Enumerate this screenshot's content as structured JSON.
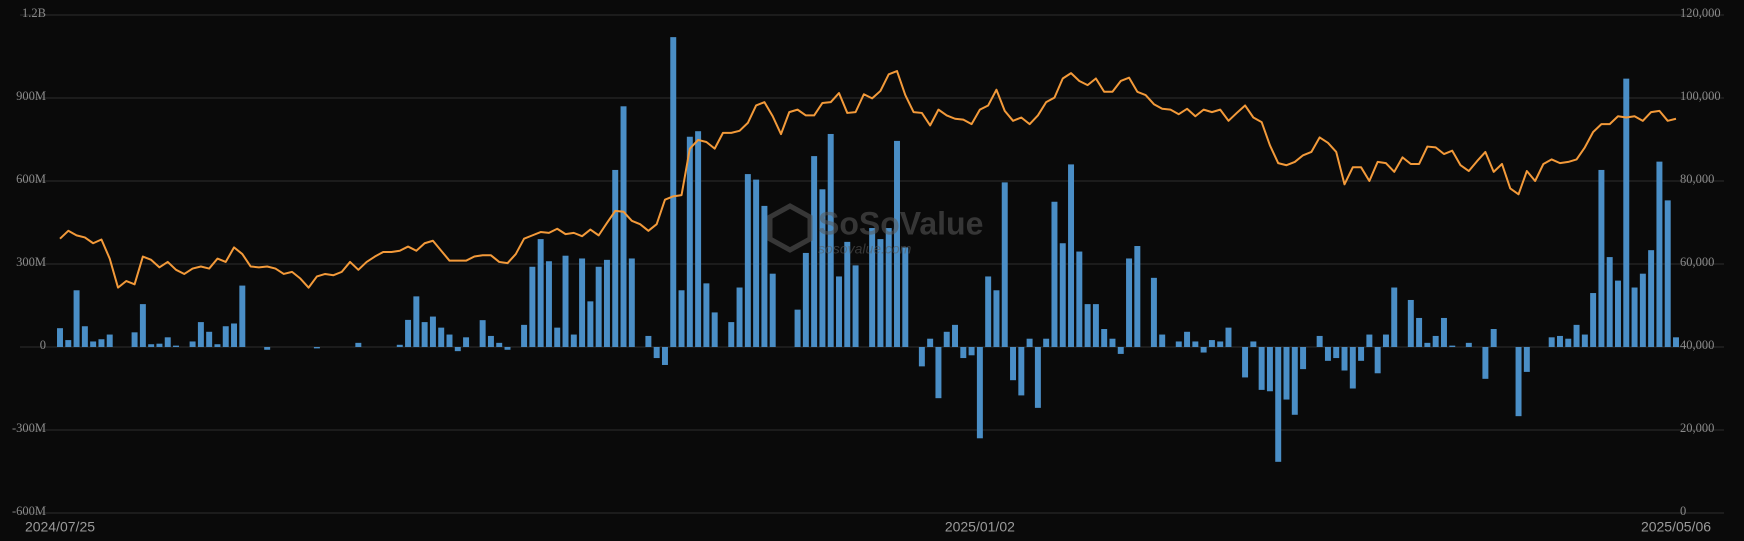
{
  "chart_data": {
    "type": "bar",
    "watermark": "SoSoValue",
    "watermark_url": "sosovalue.com",
    "categories": [
      "2024/07/25",
      null,
      null,
      null,
      null,
      null,
      null,
      null,
      null,
      null,
      null,
      null,
      null,
      null,
      null,
      null,
      null,
      null,
      null,
      null,
      null,
      null,
      null,
      null,
      null,
      null,
      null,
      null,
      null,
      null,
      null,
      null,
      null,
      null,
      null,
      null,
      null,
      null,
      null,
      null,
      null,
      null,
      null,
      null,
      null,
      null,
      null,
      null,
      null,
      null,
      null,
      null,
      null,
      null,
      null,
      null,
      null,
      null,
      null,
      null,
      null,
      null,
      null,
      null,
      null,
      null,
      null,
      null,
      null,
      null,
      null,
      null,
      null,
      null,
      null,
      null,
      null,
      null,
      null,
      null,
      null,
      null,
      null,
      null,
      null,
      null,
      null,
      null,
      null,
      null,
      null,
      null,
      null,
      null,
      null,
      null,
      null,
      null,
      null,
      null,
      null,
      null,
      null,
      null,
      null,
      null,
      null,
      null,
      null,
      null,
      null,
      "2025/01/02",
      null,
      null,
      null,
      null,
      null,
      null,
      null,
      null,
      null,
      null,
      null,
      null,
      null,
      null,
      null,
      null,
      null,
      null,
      null,
      null,
      null,
      null,
      null,
      null,
      null,
      null,
      null,
      null,
      null,
      null,
      null,
      null,
      null,
      null,
      null,
      null,
      null,
      null,
      null,
      null,
      null,
      null,
      null,
      null,
      null,
      null,
      null,
      null,
      null,
      null,
      null,
      null,
      null,
      null,
      null,
      null,
      null,
      null,
      null,
      null,
      null,
      null,
      null,
      null,
      null,
      null,
      null,
      null,
      null,
      null,
      null,
      null,
      null,
      null,
      null,
      null,
      null,
      null,
      null,
      null,
      null,
      null,
      null,
      "2025/05/06"
    ],
    "series": [
      {
        "type": "bar",
        "axis": "y",
        "color": "#4a8ec6",
        "values": [
          68000000,
          25000000,
          205000000,
          75000000,
          20000000,
          28000000,
          45000000,
          0,
          0,
          53000000,
          155000000,
          10000000,
          12000000,
          35000000,
          5000000,
          0,
          20000000,
          90000000,
          55000000,
          10000000,
          75000000,
          85000000,
          222000000,
          0,
          0,
          -10000000,
          0,
          0,
          0,
          0,
          0,
          -5000000,
          0,
          0,
          0,
          0,
          15000000,
          0,
          0,
          0,
          0,
          8000000,
          98000000,
          183000000,
          90000000,
          110000000,
          70000000,
          45000000,
          -15000000,
          35000000,
          0,
          97000000,
          40000000,
          15000000,
          -10000000,
          0,
          80000000,
          290000000,
          390000000,
          310000000,
          70000000,
          330000000,
          45000000,
          320000000,
          165000000,
          290000000,
          315000000,
          640000000,
          870000000,
          320000000,
          0,
          40000000,
          -40000000,
          -65000000,
          1120000000,
          205000000,
          760000000,
          780000000,
          230000000,
          125000000,
          0,
          90000000,
          215000000,
          625000000,
          605000000,
          510000000,
          265000000,
          0,
          0,
          135000000,
          340000000,
          690000000,
          570000000,
          770000000,
          255000000,
          380000000,
          295000000,
          0,
          430000000,
          390000000,
          430000000,
          745000000,
          360000000,
          0,
          -70000000,
          30000000,
          -185000000,
          55000000,
          80000000,
          -40000000,
          -30000000,
          -330000000,
          255000000,
          205000000,
          595000000,
          -120000000,
          -175000000,
          30000000,
          -220000000,
          30000000,
          525000000,
          375000000,
          660000000,
          345000000,
          155000000,
          155000000,
          65000000,
          30000000,
          -25000000,
          320000000,
          365000000,
          0,
          250000000,
          45000000,
          0,
          20000000,
          55000000,
          20000000,
          -20000000,
          25000000,
          20000000,
          70000000,
          0,
          -110000000,
          20000000,
          -155000000,
          -160000000,
          -415000000,
          -190000000,
          -245000000,
          -80000000,
          0,
          40000000,
          -50000000,
          -40000000,
          -85000000,
          -150000000,
          -50000000,
          45000000,
          -95000000,
          45000000,
          215000000,
          0,
          170000000,
          105000000,
          15000000,
          40000000,
          105000000,
          5000000,
          0,
          15000000,
          0,
          -115000000,
          65000000,
          0,
          0,
          -250000000,
          -90000000,
          0,
          0,
          35000000,
          40000000,
          30000000,
          80000000,
          45000000,
          195000000,
          640000000,
          325000000,
          240000000,
          970000000,
          215000000,
          265000000,
          350000000,
          670000000,
          530000000,
          35000000
        ]
      },
      {
        "type": "line",
        "axis": "y2",
        "color": "#f39a3a",
        "values": [
          66100,
          68000,
          66900,
          66400,
          65000,
          65900,
          61300,
          54300,
          55900,
          55100,
          61800,
          61000,
          59200,
          60500,
          58600,
          57600,
          58900,
          59400,
          58900,
          61300,
          60500,
          64000,
          62400,
          59400,
          59200,
          59400,
          58900,
          57600,
          58100,
          56500,
          54300,
          57000,
          57600,
          57300,
          58100,
          60500,
          58600,
          60500,
          61800,
          62900,
          62900,
          63200,
          64200,
          63200,
          65000,
          65600,
          63200,
          60800,
          60800,
          60800,
          61800,
          62100,
          62100,
          60500,
          60200,
          62400,
          66100,
          66900,
          67700,
          67500,
          68500,
          67200,
          67500,
          66700,
          68300,
          66900,
          69900,
          72800,
          72600,
          70400,
          69600,
          68000,
          69600,
          75500,
          76300,
          76600,
          87800,
          89900,
          89400,
          87800,
          91600,
          91600,
          92100,
          94000,
          98200,
          99000,
          95600,
          91300,
          96600,
          97200,
          95800,
          95800,
          98800,
          99000,
          101200,
          96400,
          96600,
          100900,
          99900,
          101700,
          105700,
          106500,
          100700,
          96600,
          96400,
          93400,
          97200,
          95800,
          95000,
          94800,
          93700,
          97200,
          98200,
          102000,
          96900,
          94500,
          95300,
          93700,
          95800,
          99000,
          100100,
          104700,
          106000,
          104100,
          103100,
          104700,
          101500,
          101500,
          104100,
          104900,
          101500,
          100700,
          98500,
          97400,
          97200,
          96100,
          97400,
          95600,
          97200,
          96600,
          97200,
          94500,
          96400,
          98200,
          95300,
          94200,
          88600,
          84300,
          83800,
          84600,
          86200,
          87000,
          90500,
          89200,
          87000,
          79200,
          83300,
          83300,
          80000,
          84600,
          84300,
          82200,
          85700,
          84100,
          84100,
          88300,
          88100,
          86500,
          87300,
          83800,
          82400,
          84800,
          87000,
          82200,
          84100,
          78200,
          76800,
          82400,
          80000,
          84100,
          85200,
          84300,
          84600,
          85200,
          88100,
          91800,
          93700,
          93700,
          95600,
          95300,
          95600,
          94500,
          96600,
          96900,
          94500,
          95000
        ]
      }
    ],
    "ylim": [
      -600000000,
      1200000000
    ],
    "yticks": [
      {
        "value": -600000000,
        "label": "-600M"
      },
      {
        "value": -300000000,
        "label": "-300M"
      },
      0,
      {
        "value": 300000000,
        "label": "300M"
      },
      {
        "value": 600000000,
        "label": "600M"
      },
      {
        "value": 900000000,
        "label": "900M"
      },
      {
        "value": 1200000000,
        "label": "1.2B"
      }
    ],
    "y2lim": [
      0,
      120000
    ],
    "y2ticks": [
      0,
      {
        "value": 20000,
        "label": "20,000"
      },
      {
        "value": 40000,
        "label": "40,000"
      },
      {
        "value": 60000,
        "label": "60,000"
      },
      {
        "value": 80000,
        "label": "80,000"
      },
      {
        "value": 100000,
        "label": "100,000"
      },
      {
        "value": 120000,
        "label": "120,000"
      }
    ],
    "grid": true
  }
}
